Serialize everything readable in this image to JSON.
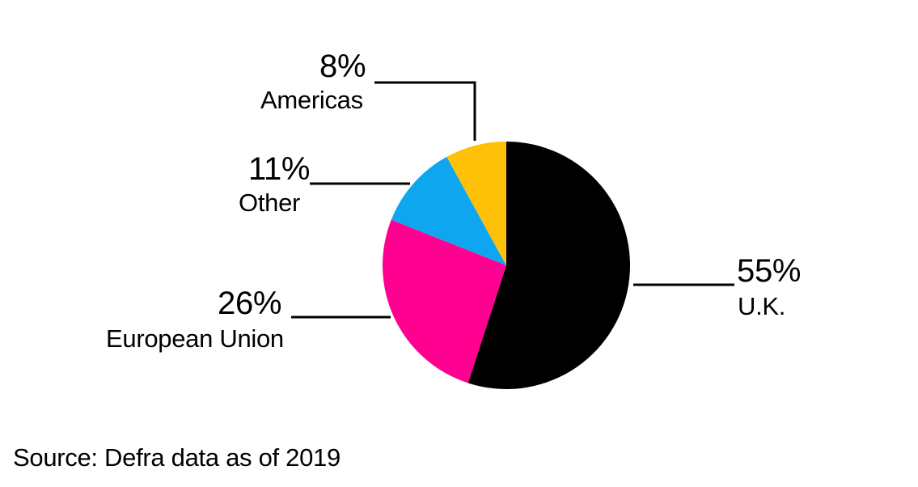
{
  "chart_data": {
    "type": "pie",
    "title": "",
    "start_angle": "top",
    "direction": "clockwise",
    "legend_position": "callout-labels-with-leader-lines",
    "background_color": "#ffffff",
    "text_color": "#000000",
    "leader_line_color": "#000000",
    "slices": [
      {
        "label": "U.K.",
        "value": 55,
        "pct_label": "55%",
        "color": "#000000"
      },
      {
        "label": "European Union",
        "value": 26,
        "pct_label": "26%",
        "color": "#ff0090"
      },
      {
        "label": "Other",
        "value": 11,
        "pct_label": "11%",
        "color": "#0fa6f0"
      },
      {
        "label": "Americas",
        "value": 8,
        "pct_label": "8%",
        "color": "#ffc008"
      }
    ]
  },
  "source": {
    "text": "Source: Defra data as of 2019"
  }
}
